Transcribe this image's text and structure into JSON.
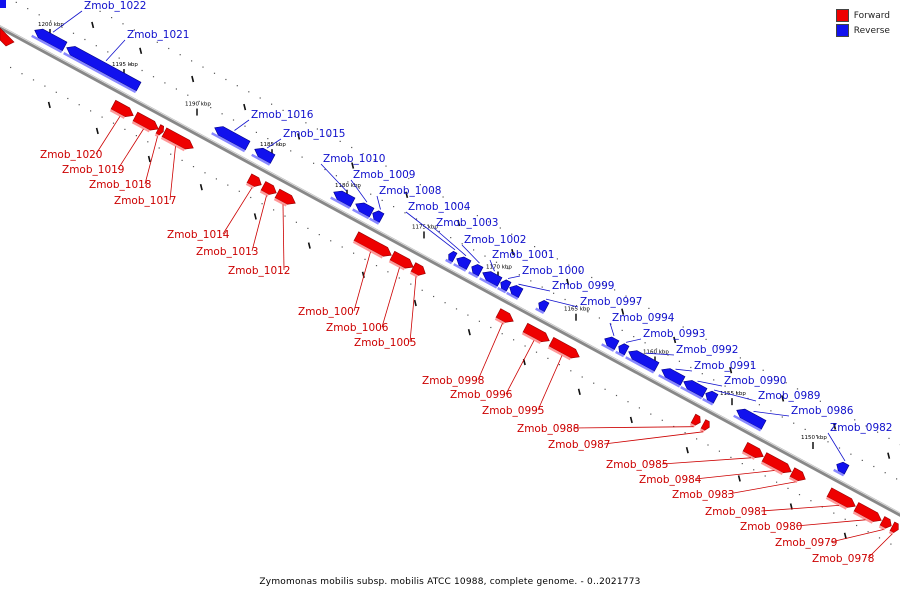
{
  "legend": {
    "forward": {
      "label": "Forward",
      "color": "#ee0000"
    },
    "reverse": {
      "label": "Reverse",
      "color": "#1111ee"
    }
  },
  "caption": "Zymomonas mobilis subsp. mobilis ATCC 10988, complete genome. - 0..2021773",
  "colors": {
    "forward": "#ee0000",
    "reverse": "#1111ee",
    "axis": "#888888",
    "forward_label": "#cc0000",
    "reverse_label": "#1010cc"
  },
  "ticks": [
    "1200 kbp",
    "1195 kbp",
    "1190 kbp",
    "1185 kbp",
    "1180 kbp",
    "1175 kbp",
    "1170 kbp",
    "1165 kbp",
    "1160 kbp",
    "1155 kbp",
    "1150 kbp"
  ],
  "genes": [
    {
      "name": "Zmob_1022",
      "strand": "reverse"
    },
    {
      "name": "Zmob_1021",
      "strand": "reverse"
    },
    {
      "name": "Zmob_1020",
      "strand": "forward"
    },
    {
      "name": "Zmob_1019",
      "strand": "forward"
    },
    {
      "name": "Zmob_1018",
      "strand": "forward"
    },
    {
      "name": "Zmob_1017",
      "strand": "forward"
    },
    {
      "name": "Zmob_1016",
      "strand": "reverse"
    },
    {
      "name": "Zmob_1015",
      "strand": "reverse"
    },
    {
      "name": "Zmob_1014",
      "strand": "forward"
    },
    {
      "name": "Zmob_1013",
      "strand": "forward"
    },
    {
      "name": "Zmob_1012",
      "strand": "forward"
    },
    {
      "name": "Zmob_1010",
      "strand": "reverse"
    },
    {
      "name": "Zmob_1009",
      "strand": "reverse"
    },
    {
      "name": "Zmob_1008",
      "strand": "reverse"
    },
    {
      "name": "Zmob_1007",
      "strand": "forward"
    },
    {
      "name": "Zmob_1006",
      "strand": "forward"
    },
    {
      "name": "Zmob_1005",
      "strand": "forward"
    },
    {
      "name": "Zmob_1004",
      "strand": "reverse"
    },
    {
      "name": "Zmob_1003",
      "strand": "reverse"
    },
    {
      "name": "Zmob_1002",
      "strand": "reverse"
    },
    {
      "name": "Zmob_1001",
      "strand": "reverse"
    },
    {
      "name": "Zmob_1000",
      "strand": "reverse"
    },
    {
      "name": "Zmob_0999",
      "strand": "reverse"
    },
    {
      "name": "Zmob_0997",
      "strand": "reverse"
    },
    {
      "name": "Zmob_0998",
      "strand": "forward"
    },
    {
      "name": "Zmob_0996",
      "strand": "forward"
    },
    {
      "name": "Zmob_0995",
      "strand": "forward"
    },
    {
      "name": "Zmob_0994",
      "strand": "reverse"
    },
    {
      "name": "Zmob_0993",
      "strand": "reverse"
    },
    {
      "name": "Zmob_0992",
      "strand": "reverse"
    },
    {
      "name": "Zmob_0991",
      "strand": "reverse"
    },
    {
      "name": "Zmob_0990",
      "strand": "reverse"
    },
    {
      "name": "Zmob_0989",
      "strand": "reverse"
    },
    {
      "name": "Zmob_0986",
      "strand": "reverse"
    },
    {
      "name": "Zmob_0982",
      "strand": "reverse"
    },
    {
      "name": "Zmob_0988",
      "strand": "forward"
    },
    {
      "name": "Zmob_0987",
      "strand": "forward"
    },
    {
      "name": "Zmob_0985",
      "strand": "forward"
    },
    {
      "name": "Zmob_0984",
      "strand": "forward"
    },
    {
      "name": "Zmob_0983",
      "strand": "forward"
    },
    {
      "name": "Zmob_0981",
      "strand": "forward"
    },
    {
      "name": "Zmob_0980",
      "strand": "forward"
    },
    {
      "name": "Zmob_0979",
      "strand": "forward"
    },
    {
      "name": "Zmob_0978",
      "strand": "forward"
    }
  ]
}
